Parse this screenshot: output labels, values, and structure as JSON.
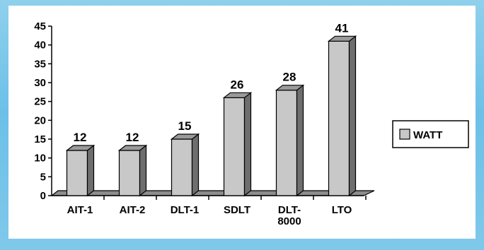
{
  "chart_data": {
    "type": "bar",
    "categories": [
      "AIT-1",
      "AIT-2",
      "DLT-1",
      "SDLT",
      "DLT-\n8000",
      "LTO"
    ],
    "series": [
      {
        "name": "WATT",
        "values": [
          12,
          12,
          15,
          26,
          28,
          41
        ]
      }
    ],
    "ylim": [
      0,
      45
    ],
    "yticks": [
      0,
      5,
      10,
      15,
      20,
      25,
      30,
      35,
      40,
      45
    ],
    "grid": false,
    "legend": "right",
    "bar_color": "#c8c8c8",
    "bar_side_color": "#6e6e6e",
    "bar_top_color": "#9a9a9a",
    "floor_color": "#8c8c8c"
  }
}
